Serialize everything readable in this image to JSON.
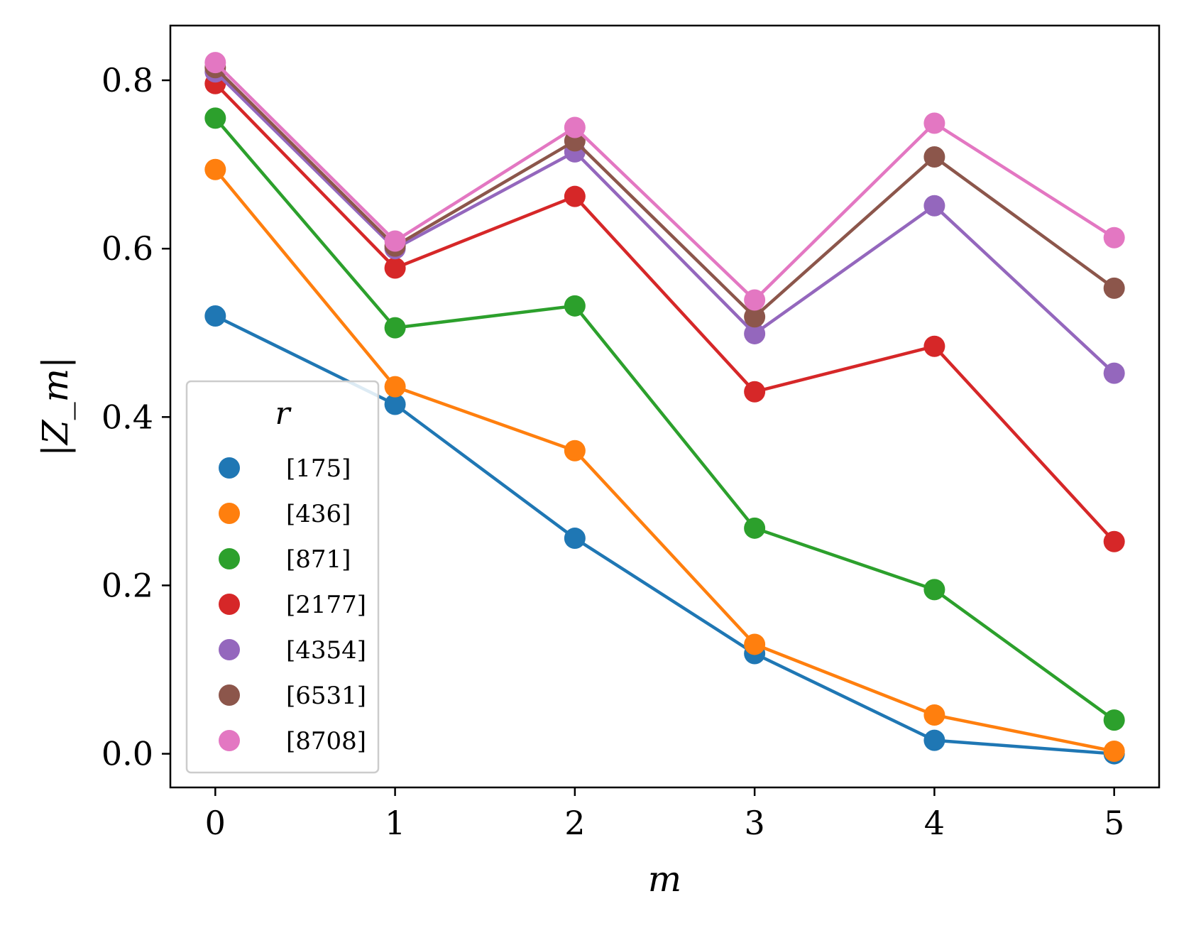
{
  "chart_data": {
    "type": "line",
    "title": "",
    "xlabel": "m",
    "ylabel": "|Z_m|",
    "xlim": [
      -0.25,
      5.25
    ],
    "ylim": [
      -0.04,
      0.865
    ],
    "x": [
      0,
      1,
      2,
      3,
      4,
      5
    ],
    "x_ticks": [
      "0",
      "1",
      "2",
      "3",
      "4",
      "5"
    ],
    "y_ticks": [
      {
        "value": 0.0,
        "label": "0.0"
      },
      {
        "value": 0.2,
        "label": "0.2"
      },
      {
        "value": 0.4,
        "label": "0.4"
      },
      {
        "value": 0.6,
        "label": "0.6"
      },
      {
        "value": 0.8,
        "label": "0.8"
      }
    ],
    "grid": false,
    "legend": {
      "title": "r",
      "placement": "center-left"
    },
    "series": [
      {
        "name": "[175]",
        "color": "#1f77b4",
        "values": [
          0.52,
          0.415,
          0.256,
          0.119,
          0.016,
          0.0
        ]
      },
      {
        "name": "[436]",
        "color": "#ff7f0e",
        "values": [
          0.694,
          0.436,
          0.36,
          0.13,
          0.046,
          0.003
        ]
      },
      {
        "name": "[871]",
        "color": "#2ca02c",
        "values": [
          0.755,
          0.506,
          0.532,
          0.268,
          0.195,
          0.04
        ]
      },
      {
        "name": "[2177]",
        "color": "#d62728",
        "values": [
          0.796,
          0.577,
          0.662,
          0.43,
          0.484,
          0.252
        ]
      },
      {
        "name": "[4354]",
        "color": "#9467bd",
        "values": [
          0.81,
          0.6,
          0.715,
          0.499,
          0.651,
          0.452
        ]
      },
      {
        "name": "[6531]",
        "color": "#8c564b",
        "values": [
          0.815,
          0.603,
          0.728,
          0.519,
          0.709,
          0.553
        ]
      },
      {
        "name": "[8708]",
        "color": "#e377c2",
        "values": [
          0.821,
          0.609,
          0.744,
          0.539,
          0.749,
          0.613
        ]
      }
    ]
  }
}
